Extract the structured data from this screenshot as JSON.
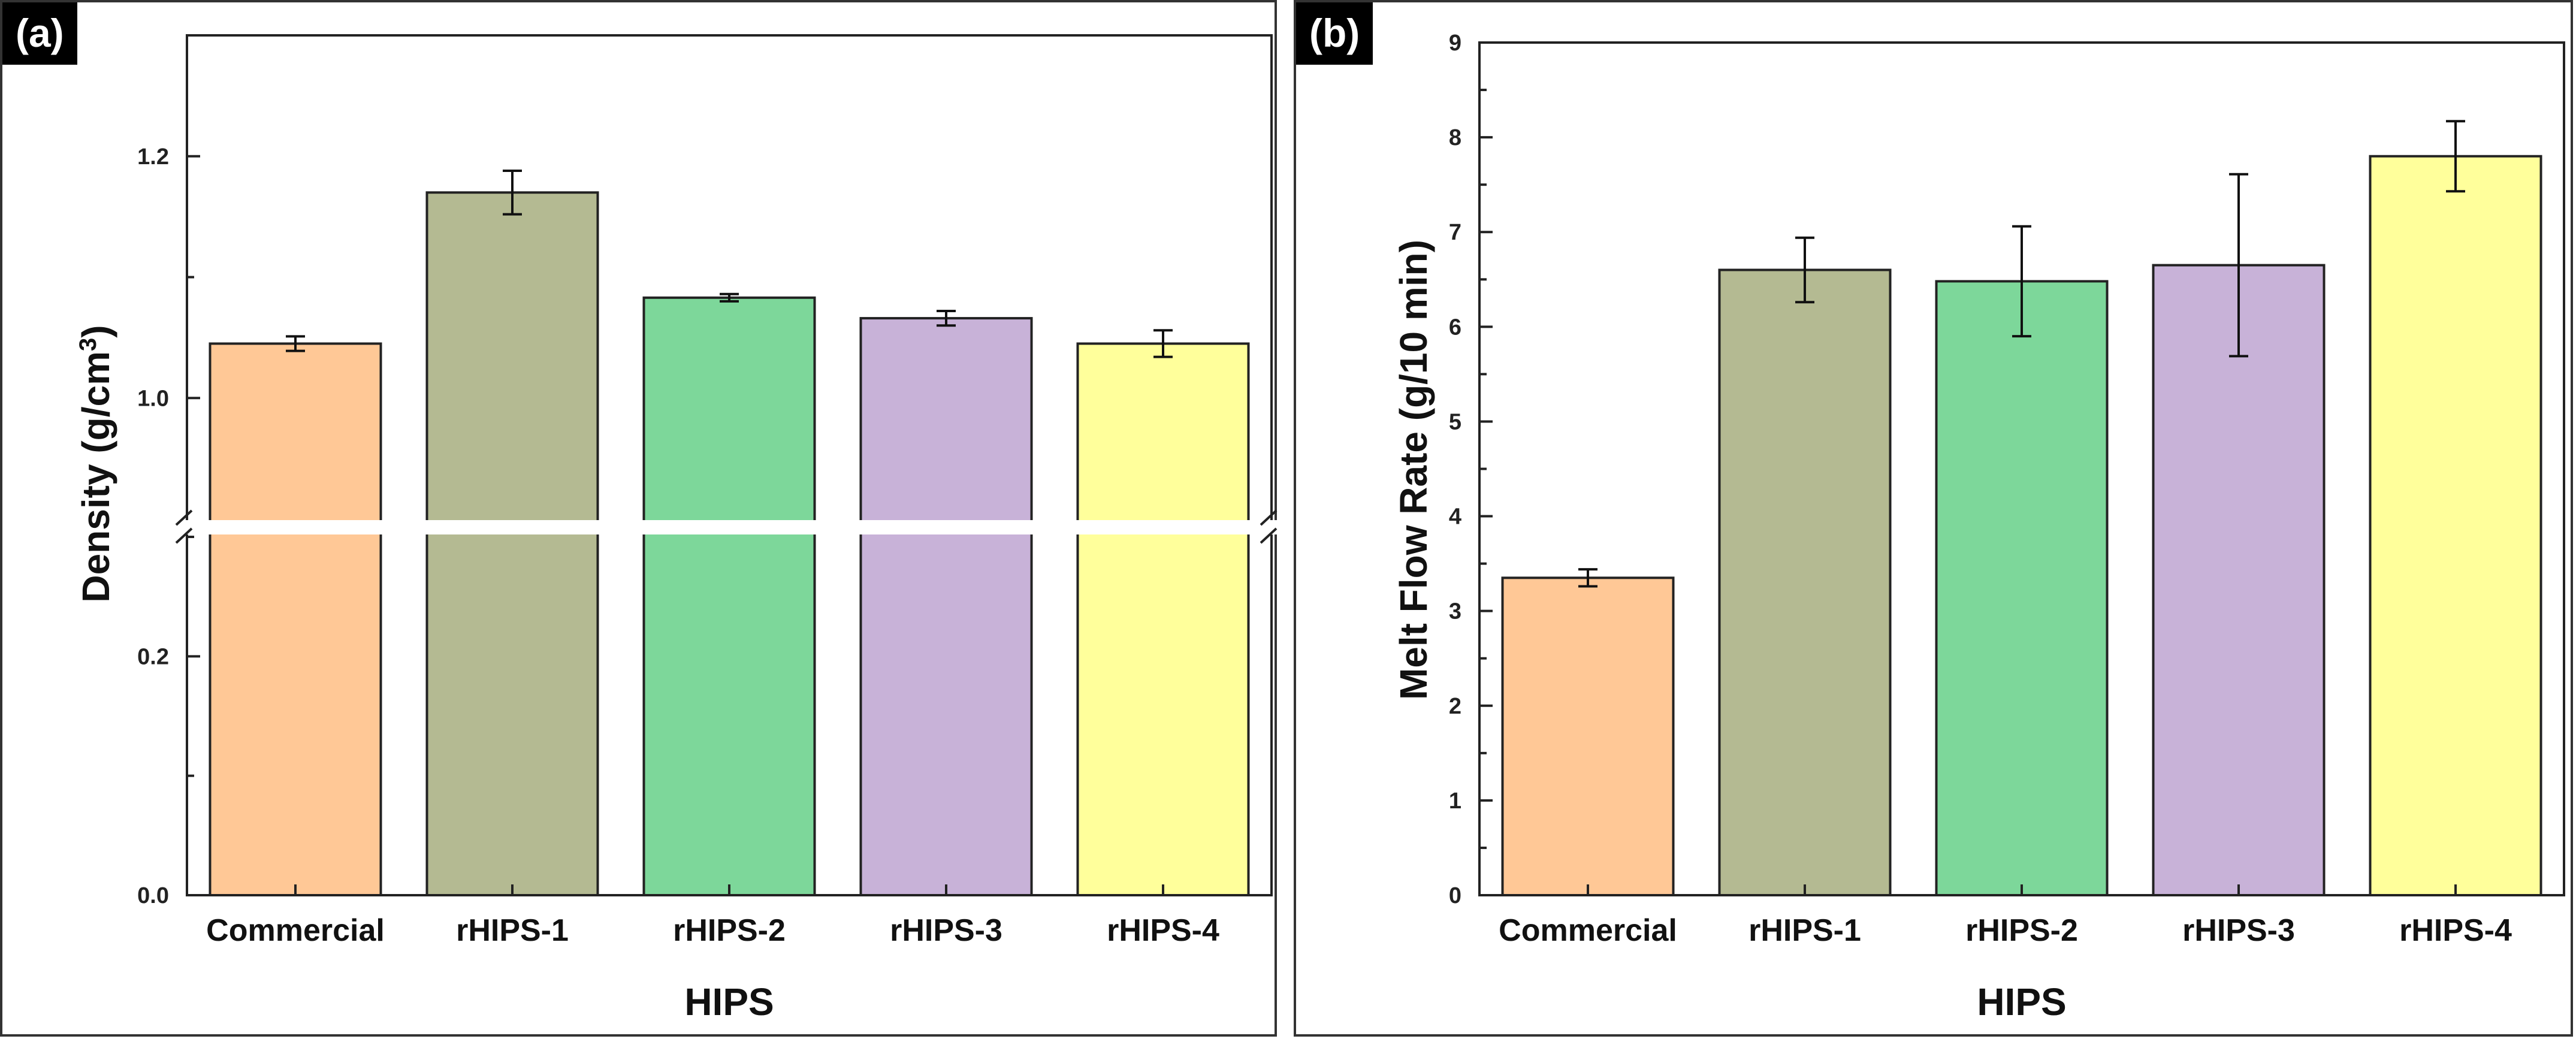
{
  "chart_data": [
    {
      "panel_label": "(a)",
      "type": "bar",
      "xlabel": "HIPS",
      "ylabel_prefix": "Density (g/cm",
      "ylabel_sup": "3",
      "ylabel_suffix": ")",
      "categories": [
        "Commercial",
        "rHIPS-1",
        "rHIPS-2",
        "rHIPS-3",
        "rHIPS-4"
      ],
      "values": [
        1.045,
        1.17,
        1.083,
        1.066,
        1.045
      ],
      "errors": [
        0.006,
        0.018,
        0.003,
        0.006,
        0.011
      ],
      "colors": [
        "#FFC896",
        "#B4BA92",
        "#7DD79A",
        "#C8B2D8",
        "#FFFF9B"
      ],
      "axis_break": {
        "lower_range": [
          0,
          0.3
        ],
        "upper_range": [
          0.9,
          1.3
        ]
      },
      "yticks": [
        "0.0",
        "0.2",
        "1.0",
        "1.2"
      ],
      "ylim": [
        0,
        1.3
      ]
    },
    {
      "panel_label": "(b)",
      "type": "bar",
      "xlabel": "HIPS",
      "ylabel": "Melt Flow Rate (g/10 min)",
      "categories": [
        "Commercial",
        "rHIPS-1",
        "rHIPS-2",
        "rHIPS-3",
        "rHIPS-4"
      ],
      "values": [
        3.35,
        6.6,
        6.48,
        6.65,
        7.8
      ],
      "errors": [
        0.09,
        0.34,
        0.58,
        0.96,
        0.37
      ],
      "colors": [
        "#FFC896",
        "#B4BA92",
        "#7DD79A",
        "#C8B2D8",
        "#FFFF9B"
      ],
      "yticks": [
        "0",
        "1",
        "2",
        "3",
        "4",
        "5",
        "6",
        "7",
        "8",
        "9"
      ],
      "ylim": [
        0,
        9
      ]
    }
  ]
}
